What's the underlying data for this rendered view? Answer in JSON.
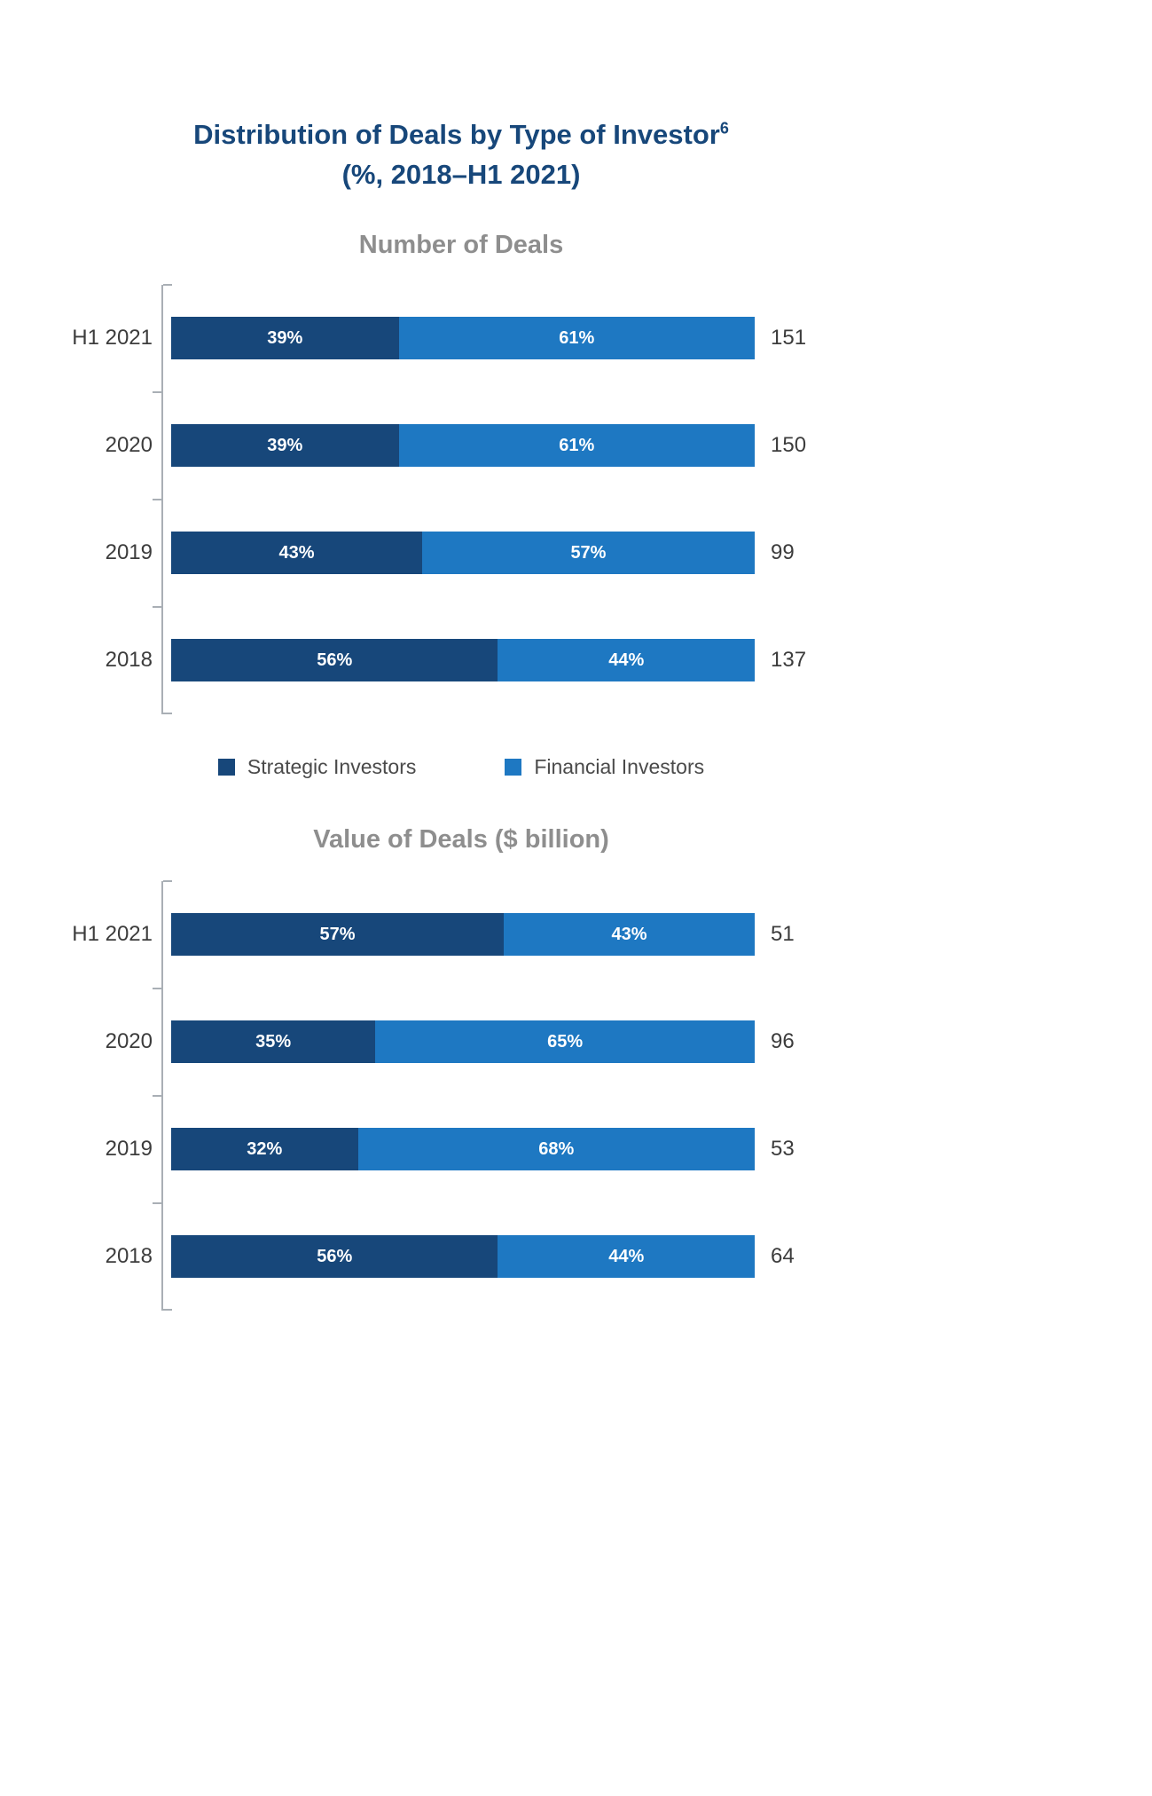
{
  "title": {
    "main": "Distribution of Deals by Type of Investor",
    "superscript": "6",
    "subtitle": "(%, 2018–H1 2021)"
  },
  "legend": [
    {
      "label": "Strategic Investors",
      "color": "#17477a"
    },
    {
      "label": "Financial Investors",
      "color": "#1e78c2"
    }
  ],
  "chart_data": [
    {
      "type": "bar",
      "orientation": "horizontal",
      "stacked": true,
      "title": "Number of Deals",
      "unit": "%",
      "categories": [
        "H1 2021",
        "2020",
        "2019",
        "2018"
      ],
      "series": [
        {
          "name": "Strategic Investors",
          "color": "#17477a",
          "values": [
            39,
            39,
            43,
            56
          ]
        },
        {
          "name": "Financial Investors",
          "color": "#1e78c2",
          "values": [
            61,
            61,
            57,
            44
          ]
        }
      ],
      "totals": [
        151,
        150,
        99,
        137
      ],
      "xlim": [
        0,
        100
      ],
      "legend_position": "below"
    },
    {
      "type": "bar",
      "orientation": "horizontal",
      "stacked": true,
      "title": "Value of Deals ($ billion)",
      "unit": "%",
      "categories": [
        "H1 2021",
        "2020",
        "2019",
        "2018"
      ],
      "series": [
        {
          "name": "Strategic Investors",
          "color": "#17477a",
          "values": [
            57,
            35,
            32,
            56
          ]
        },
        {
          "name": "Financial Investors",
          "color": "#1e78c2",
          "values": [
            43,
            65,
            68,
            44
          ]
        }
      ],
      "totals": [
        51,
        96,
        53,
        64
      ],
      "xlim": [
        0,
        100
      ],
      "legend_position": "none"
    }
  ]
}
